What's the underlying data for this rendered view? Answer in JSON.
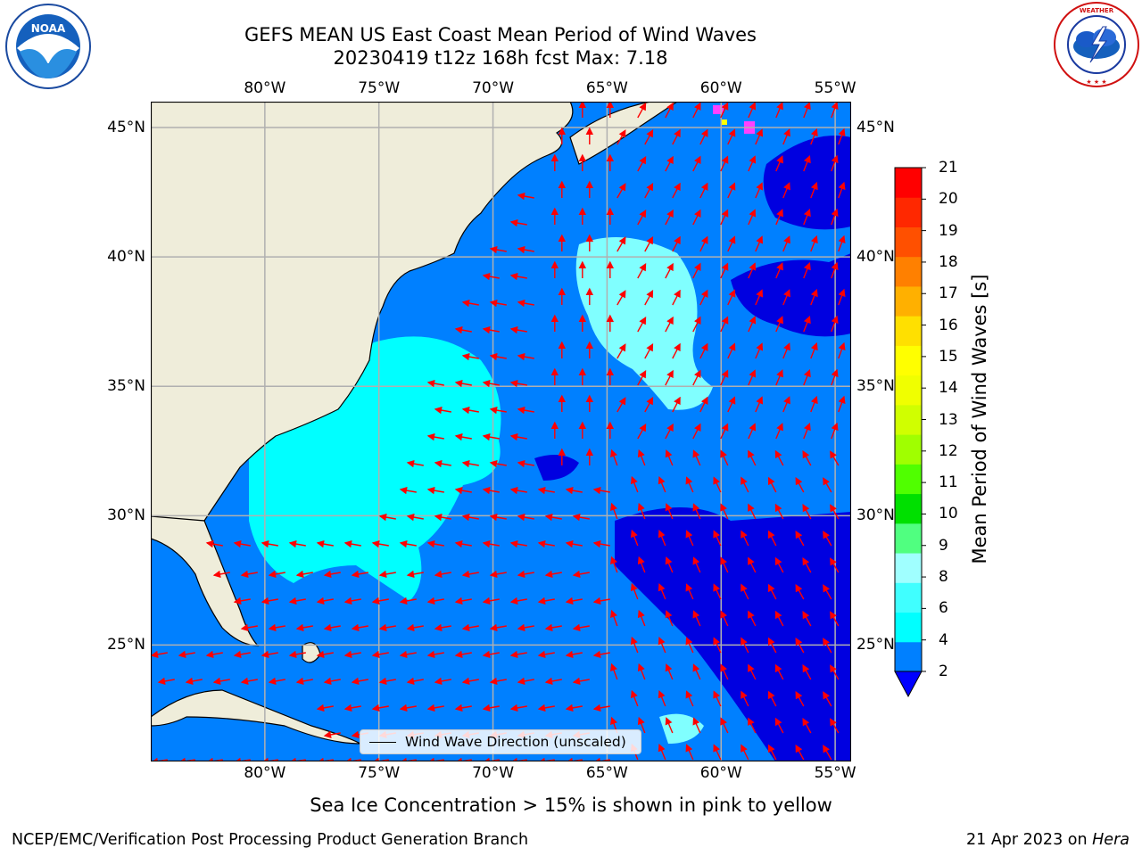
{
  "title": {
    "line1": "GEFS MEAN US East Coast Mean Period of Wind Waves",
    "line2": "20230419 t12z 168h fcst   Max: 7.18"
  },
  "logos": {
    "left_text": "NOAA",
    "left_ring_text": "NATIONAL OCEANIC AND ATMOSPHERIC ADMINISTRATION · U.S. DEPARTMENT OF COMMERCE",
    "right_ring_text": "NATIONAL WEATHER SERVICE"
  },
  "map": {
    "lon_labels": [
      "80°W",
      "75°W",
      "70°W",
      "65°W",
      "60°W",
      "55°W"
    ],
    "lat_labels": [
      "45°N",
      "40°N",
      "35°N",
      "30°N",
      "25°N"
    ],
    "lon_range": [
      -85,
      -54.3
    ],
    "lat_range": [
      20.5,
      46
    ],
    "grid": true,
    "legend_label": "Wind Wave Direction (unscaled)",
    "colors": {
      "land": "#efedda",
      "sea_2_4": "#0080ff",
      "sea_4_6": "#00ffff",
      "sea_6_8": "#80ffff",
      "below_2": "#0000e0",
      "ice_pink": "#ff40ff",
      "ice_yellow": "#ffff00",
      "arrows": "#ff0000",
      "grid": "#b0b0b0"
    }
  },
  "colorbar": {
    "title": "Mean Period of Wind Waves [s]",
    "labels": [
      "21",
      "20",
      "19",
      "18",
      "17",
      "16",
      "15",
      "14",
      "13",
      "12",
      "11",
      "10",
      "9",
      "8",
      "6",
      "4",
      "2"
    ],
    "colors": [
      "#0080ff",
      "#00ffff",
      "#40ffff",
      "#a0ffff",
      "#50ff80",
      "#00e000",
      "#50ff00",
      "#a0ff00",
      "#d0ff00",
      "#f0ff00",
      "#ffff00",
      "#ffe000",
      "#ffb000",
      "#ff8000",
      "#ff5000",
      "#ff2800",
      "#ff0000"
    ],
    "extend_color": "#0000ff"
  },
  "caption": "Sea Ice Concentration > 15% is shown in pink to yellow",
  "footer": {
    "left": "NCEP/EMC/Verification Post Processing Product Generation Branch",
    "right_prefix": "21 Apr 2023 on ",
    "right_machine": "Hera"
  }
}
